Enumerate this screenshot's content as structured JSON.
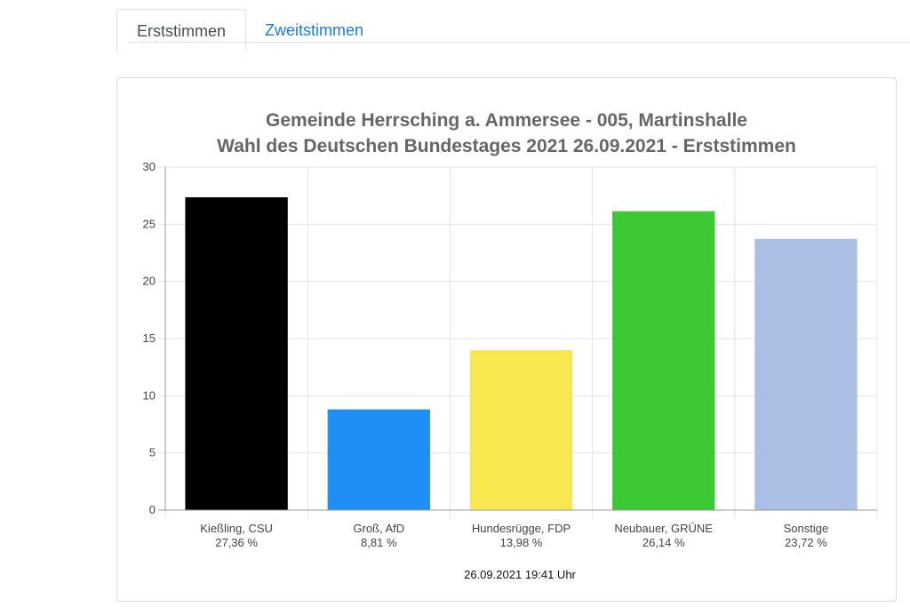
{
  "tabs": [
    {
      "label": "Erststimmen",
      "active": true
    },
    {
      "label": "Zweitstimmen",
      "active": false
    }
  ],
  "chart_data": {
    "type": "bar",
    "title": "Gemeinde Herrsching a. Ammersee - 005, Martinshalle",
    "subtitle": "Wahl des Deutschen Bundestages 2021 26.09.2021  - Erststimmen",
    "categories": [
      "Kießling, CSU",
      "Groß, AfD",
      "Hundesrügge, FDP",
      "Neubauer, GRÜNE",
      "Sonstige"
    ],
    "value_labels": [
      "27,36 %",
      "8,81 %",
      "13,98 %",
      "26,14 %",
      "23,72 %"
    ],
    "values": [
      27.36,
      8.81,
      13.98,
      26.14,
      23.72
    ],
    "colors": [
      "#000000",
      "#1f8ff5",
      "#f8e74e",
      "#3cc832",
      "#aabfe3"
    ],
    "yticks": [
      0,
      5,
      10,
      15,
      20,
      25,
      30
    ],
    "ylim": [
      0,
      30
    ],
    "grid": true,
    "xlabel": "",
    "ylabel": "",
    "footer": "26.09.2021 19:41 Uhr"
  }
}
